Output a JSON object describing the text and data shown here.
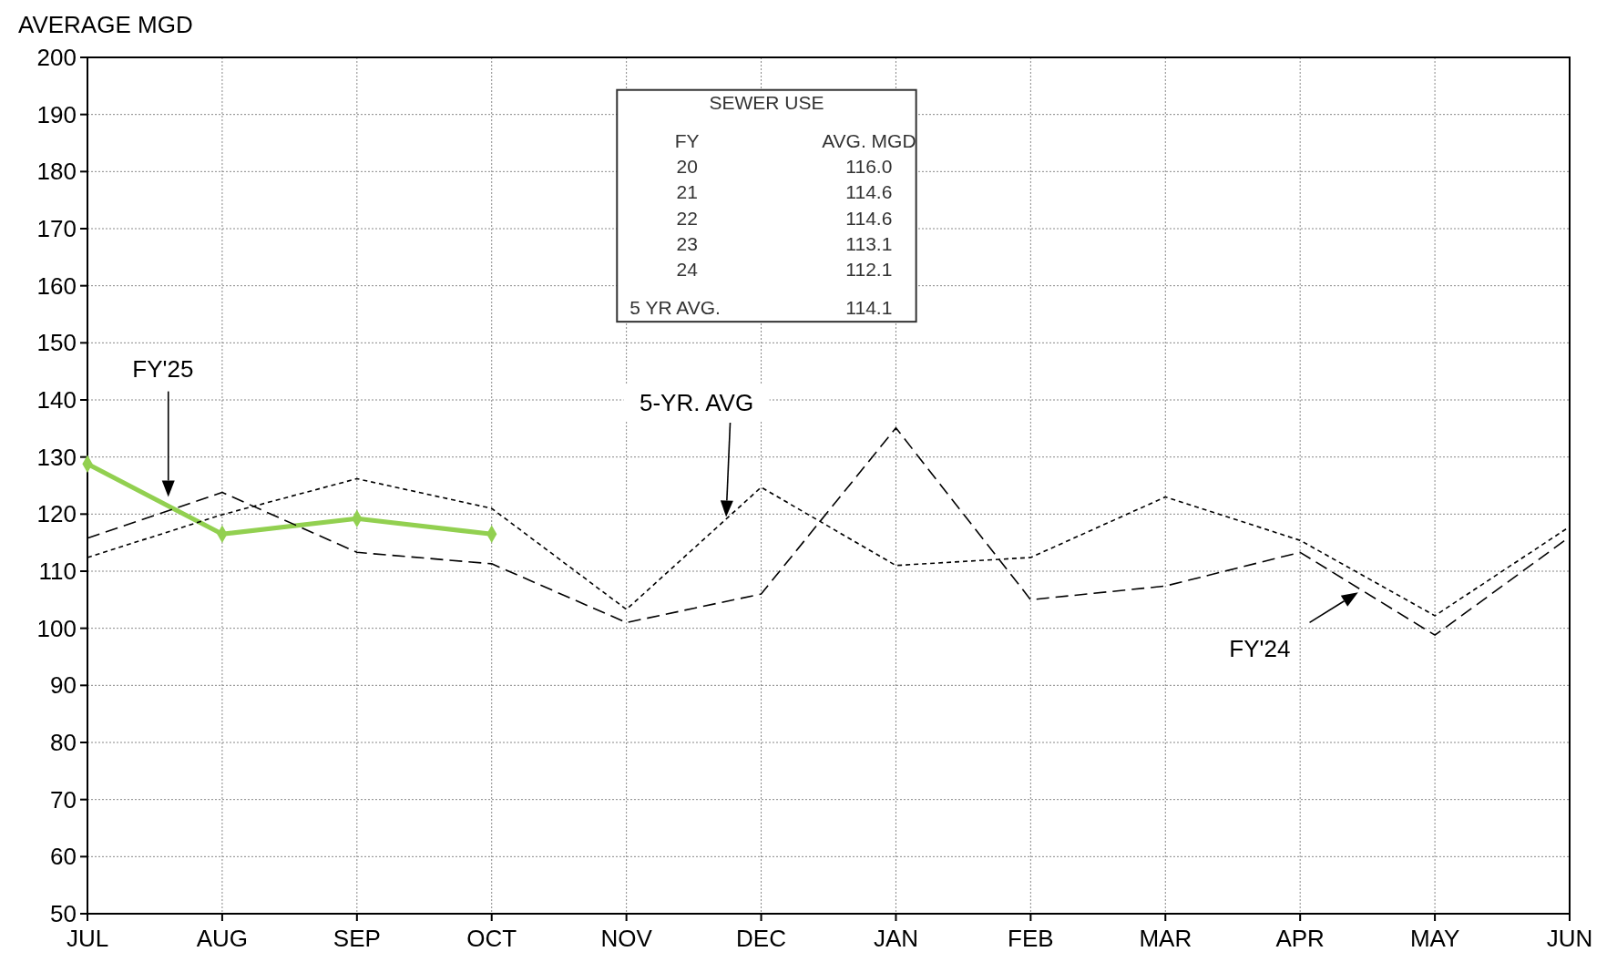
{
  "chart_data": {
    "type": "line",
    "ylabel": "AVERAGE MGD",
    "categories": [
      "JUL",
      "AUG",
      "SEP",
      "OCT",
      "NOV",
      "DEC",
      "JAN",
      "FEB",
      "MAR",
      "APR",
      "MAY",
      "JUN"
    ],
    "series": [
      {
        "name": "FY'25",
        "color": "#92d050",
        "marker": "diamond",
        "line_style": "solid",
        "values": [
          128.8,
          116.5,
          119.2,
          116.5,
          null,
          null,
          null,
          null,
          null,
          null,
          null,
          null
        ]
      },
      {
        "name": "5-YR. AVG",
        "color": "#000000",
        "marker": "none",
        "line_style": "dotted",
        "values": [
          112.4,
          119.9,
          126.2,
          121,
          103.3,
          124.7,
          111,
          112.4,
          123,
          115.4,
          102.2,
          117.8
        ]
      },
      {
        "name": "FY'24",
        "color": "#000000",
        "marker": "none",
        "line_style": "dashed",
        "values": [
          115.8,
          123.8,
          113.3,
          111.3,
          101,
          106,
          135.1,
          105,
          107.4,
          113.3,
          98.8,
          116
        ]
      }
    ],
    "ylim": [
      50,
      200
    ],
    "yticks": [
      50,
      60,
      70,
      80,
      90,
      100,
      110,
      120,
      130,
      140,
      150,
      160,
      170,
      180,
      190,
      200
    ],
    "grid": true,
    "annotations": [
      "SEWER USE",
      "FY",
      "AVG. MGD",
      "20",
      "116.0",
      "21",
      "114.6",
      "22",
      "114.6",
      "23",
      "113.1",
      "24",
      "112.1",
      "5 YR AVG.",
      "114.1"
    ]
  }
}
